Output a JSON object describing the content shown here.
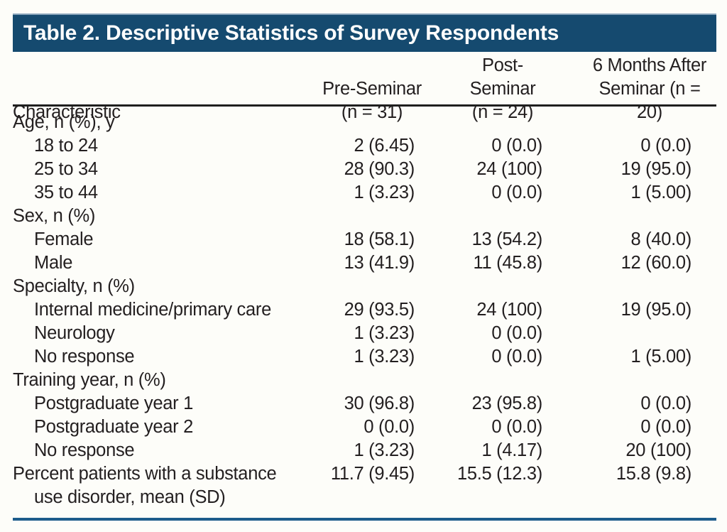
{
  "table": {
    "title": "Table 2. Descriptive Statistics of Survey Respondents",
    "header": {
      "characteristic": "Characteristic",
      "col2": [
        "Pre-Seminar",
        "(n = 31)"
      ],
      "col3": [
        "Post-Seminar",
        "(n = 24)"
      ],
      "col4": [
        "6 Months After",
        "Seminar (n = 20)"
      ]
    },
    "rows": [
      {
        "label": "Age, n (%), y",
        "indent": 0,
        "values": [
          "",
          "",
          ""
        ]
      },
      {
        "label": "18 to 24",
        "indent": 1,
        "values": [
          "2 (6.45)",
          "0 (0.0)",
          "0 (0.0)"
        ]
      },
      {
        "label": "25 to 34",
        "indent": 1,
        "values": [
          "28 (90.3)",
          "24 (100)",
          "19 (95.0)"
        ]
      },
      {
        "label": "35 to 44",
        "indent": 1,
        "values": [
          "1 (3.23)",
          "0 (0.0)",
          "1 (5.00)"
        ]
      },
      {
        "label": "Sex, n (%)",
        "indent": 0,
        "values": [
          "",
          "",
          ""
        ]
      },
      {
        "label": "Female",
        "indent": 1,
        "values": [
          "18 (58.1)",
          "13 (54.2)",
          "8 (40.0)"
        ]
      },
      {
        "label": "Male",
        "indent": 1,
        "values": [
          "13 (41.9)",
          "11 (45.8)",
          "12 (60.0)"
        ]
      },
      {
        "label": "Specialty, n (%)",
        "indent": 0,
        "values": [
          "",
          "",
          ""
        ]
      },
      {
        "label": "Internal medicine/primary care",
        "indent": 1,
        "values": [
          "29 (93.5)",
          "24 (100)",
          "19 (95.0)"
        ]
      },
      {
        "label": "Neurology",
        "indent": 1,
        "values": [
          "1 (3.23)",
          "0 (0.0)",
          ""
        ]
      },
      {
        "label": "No response",
        "indent": 1,
        "values": [
          "1 (3.23)",
          "0 (0.0)",
          "1 (5.00)"
        ]
      },
      {
        "label": "Training year, n (%)",
        "indent": 0,
        "values": [
          "",
          "",
          ""
        ]
      },
      {
        "label": "Postgraduate year 1",
        "indent": 1,
        "values": [
          "30 (96.8)",
          "23 (95.8)",
          "0 (0.0)"
        ]
      },
      {
        "label": "Postgraduate year 2",
        "indent": 1,
        "values": [
          "0 (0.0)",
          "0 (0.0)",
          "0 (0.0)"
        ]
      },
      {
        "label": "No response",
        "indent": 1,
        "values": [
          "1 (3.23)",
          "1 (4.17)",
          "20 (100)"
        ]
      },
      {
        "label": "Percent patients with a substance",
        "label2": "use disorder, mean (SD)",
        "indent": 0,
        "values": [
          "11.7 (9.45)",
          "15.5 (12.3)",
          "15.8 (9.8)"
        ]
      }
    ]
  },
  "colors": {
    "banner_bg": "#154a6f",
    "banner_text": "#ffffff",
    "header_rule": "#1f1f1f",
    "bottom_rule": "#1d5c8c",
    "body_text": "#231f20",
    "page_bg": "#fdfdf9"
  }
}
